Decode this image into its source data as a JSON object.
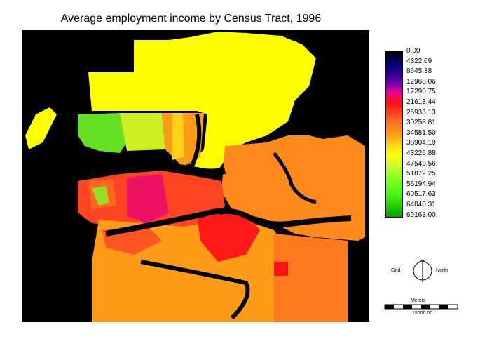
{
  "title": "Average employment income by Census Tract, 1996",
  "legend": {
    "colors": [
      "#000000",
      "#000066",
      "#220088",
      "#6600aa",
      "#ee0099",
      "#ff1111",
      "#ff4422",
      "#ff7a1f",
      "#ff9b16",
      "#ffd21a",
      "#ffff00",
      "#ccff33",
      "#99ff22",
      "#66ff22",
      "#44ee11",
      "#22cc00",
      "#009900"
    ],
    "labels": [
      "0.00",
      "4322.69",
      "8645.38",
      "12968.06",
      "17290.75",
      "21613.44",
      "25936.13",
      "30258.81",
      "34581.50",
      "38904.19",
      "43226.88",
      "47549.56",
      "51872.25",
      "56194.94",
      "60517.63",
      "64840.31",
      "69163.00"
    ]
  },
  "north_arrow": {
    "grid_label": "Grid",
    "north_label": "North"
  },
  "scale_bar": {
    "units_label": "Meters",
    "distance_label": "15000.00"
  }
}
